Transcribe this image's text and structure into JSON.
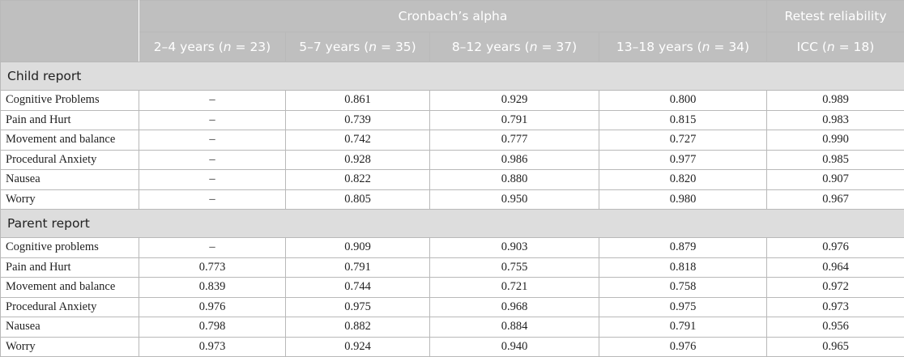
{
  "header": {
    "group_alpha": "Cronbach’s alpha",
    "group_retest": "Retest reliability",
    "columns": [
      {
        "label": "2–4 years (",
        "n": "n",
        "rest": " = 23)"
      },
      {
        "label": "5–7 years (",
        "n": "n",
        "rest": " = 35)"
      },
      {
        "label": "8–12 years (",
        "n": "n",
        "rest": " = 37)"
      },
      {
        "label": "13–18 years (",
        "n": "n",
        "rest": " = 34)"
      },
      {
        "label": "ICC (",
        "n": "n",
        "rest": " = 18)"
      }
    ]
  },
  "sections": [
    {
      "title": "Child report",
      "rows": [
        {
          "label": "Cognitive Problems",
          "values": [
            "–",
            "0.861",
            "0.929",
            "0.800",
            "0.989"
          ]
        },
        {
          "label": "Pain and Hurt",
          "values": [
            "–",
            "0.739",
            "0.791",
            "0.815",
            "0.983"
          ]
        },
        {
          "label": "Movement and balance",
          "values": [
            "–",
            "0.742",
            "0.777",
            "0.727",
            "0.990"
          ]
        },
        {
          "label": "Procedural Anxiety",
          "values": [
            "–",
            "0.928",
            "0.986",
            "0.977",
            "0.985"
          ]
        },
        {
          "label": "Nausea",
          "values": [
            "–",
            "0.822",
            "0.880",
            "0.820",
            "0.907"
          ]
        },
        {
          "label": "Worry",
          "values": [
            "–",
            "0.805",
            "0.950",
            "0.980",
            "0.967"
          ]
        }
      ]
    },
    {
      "title": "Parent report",
      "rows": [
        {
          "label": "Cognitive problems",
          "values": [
            "–",
            "0.909",
            "0.903",
            "0.879",
            "0.976"
          ]
        },
        {
          "label": "Pain and Hurt",
          "values": [
            "0.773",
            "0.791",
            "0.755",
            "0.818",
            "0.964"
          ]
        },
        {
          "label": "Movement and balance",
          "values": [
            "0.839",
            "0.744",
            "0.721",
            "0.758",
            "0.972"
          ]
        },
        {
          "label": "Procedural Anxiety",
          "values": [
            "0.976",
            "0.975",
            "0.968",
            "0.975",
            "0.973"
          ]
        },
        {
          "label": "Nausea",
          "values": [
            "0.798",
            "0.882",
            "0.884",
            "0.791",
            "0.956"
          ]
        },
        {
          "label": "Worry",
          "values": [
            "0.973",
            "0.924",
            "0.940",
            "0.976",
            "0.965"
          ]
        }
      ]
    }
  ]
}
